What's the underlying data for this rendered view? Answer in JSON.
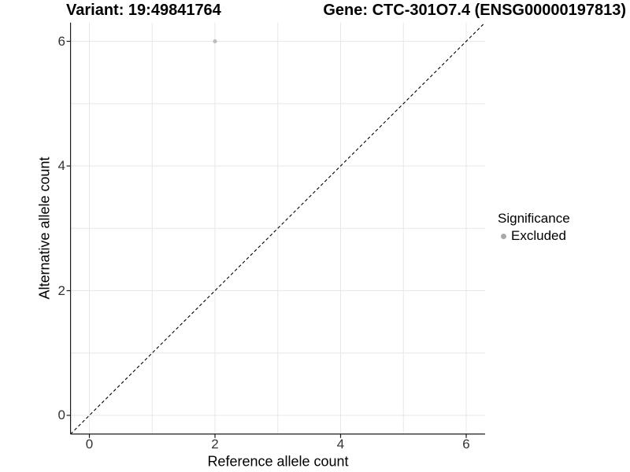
{
  "figure": {
    "title_left": "Variant: 19:49841764",
    "title_right": "Gene: CTC-301O7.4 (ENSG00000197813)"
  },
  "chart_data": {
    "type": "scatter",
    "xlabel": "Reference allele count",
    "ylabel": "Alternative allele count",
    "xlim": [
      -0.3,
      6.3
    ],
    "ylim": [
      -0.3,
      6.3
    ],
    "x_ticks": [
      0,
      2,
      4,
      6
    ],
    "y_ticks": [
      0,
      2,
      4,
      6
    ],
    "gridlines_x": [
      0,
      1,
      2,
      3,
      4,
      5,
      6
    ],
    "gridlines_y": [
      0,
      1,
      2,
      3,
      4,
      5,
      6
    ],
    "grid_on": true,
    "series": [
      {
        "name": "Excluded",
        "color": "#bdbdbd",
        "points": [
          {
            "x": 2,
            "y": 6
          }
        ]
      }
    ],
    "abline": {
      "slope": 1,
      "intercept": 0,
      "linetype": "dashed",
      "color": "#000000"
    },
    "legend": {
      "title": "Significance",
      "position": "right",
      "items": [
        {
          "label": "Excluded",
          "color": "#a9a9a9"
        }
      ]
    },
    "colors": {
      "background": "#ffffff",
      "gridline": "#e7e7e7",
      "axis_line": "#1a1a1a",
      "tick_mark": "#1a1a1a",
      "tick_label": "#333333"
    }
  }
}
